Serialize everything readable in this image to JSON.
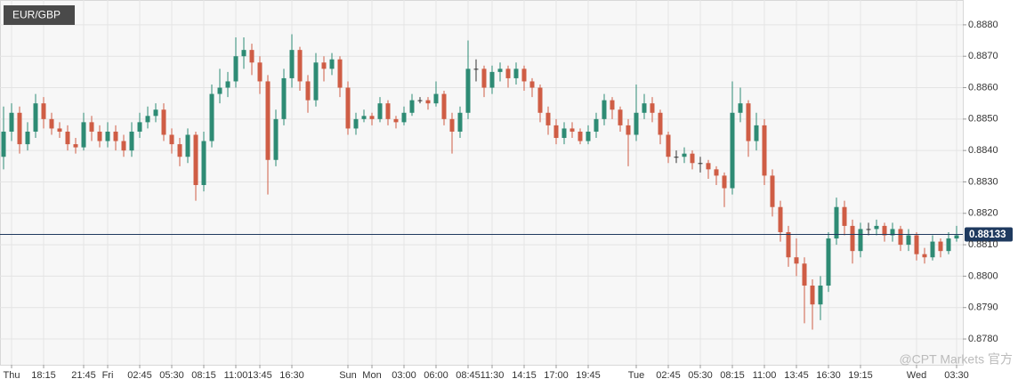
{
  "chart_data": {
    "type": "candlestick",
    "title": "EUR/GBP",
    "categories": [
      null,
      "Thu",
      null,
      null,
      null,
      "18:15",
      null,
      null,
      null,
      null,
      "21:45",
      null,
      null,
      "Fri",
      null,
      null,
      null,
      "02:45",
      null,
      null,
      null,
      "05:30",
      null,
      null,
      null,
      "08:15",
      null,
      null,
      null,
      "11:00",
      null,
      null,
      "13:45",
      null,
      null,
      null,
      "16:30",
      null,
      null,
      null,
      null,
      null,
      null,
      "Sun",
      null,
      null,
      "Mon",
      null,
      null,
      null,
      "03:00",
      null,
      null,
      null,
      "06:00",
      null,
      null,
      null,
      "08:45",
      null,
      null,
      "11:30",
      null,
      null,
      null,
      "14:15",
      null,
      null,
      null,
      "17:00",
      null,
      null,
      null,
      "19:45",
      null,
      null,
      null,
      null,
      null,
      "Tue",
      null,
      null,
      null,
      "02:45",
      null,
      null,
      null,
      "05:30",
      null,
      null,
      null,
      "08:15",
      null,
      null,
      null,
      "11:00",
      null,
      null,
      null,
      "13:45",
      null,
      null,
      null,
      "16:30",
      null,
      null,
      null,
      "19:15",
      null,
      null,
      null,
      null,
      null,
      null,
      "Wed",
      null,
      null,
      null,
      null,
      "03:30"
    ],
    "open": [
      0.8838,
      0.8846,
      0.8852,
      0.8842,
      0.8846,
      0.8855,
      0.885,
      0.8847,
      0.8846,
      0.8842,
      0.8841,
      0.8849,
      0.8846,
      0.8843,
      0.8846,
      0.8843,
      0.884,
      0.8846,
      0.8849,
      0.8851,
      0.8853,
      0.8845,
      0.8842,
      0.8838,
      0.8845,
      0.8829,
      0.8843,
      0.8858,
      0.886,
      0.8862,
      0.887,
      0.8872,
      0.8868,
      0.8862,
      0.8837,
      0.885,
      0.8863,
      0.8872,
      0.8862,
      0.8856,
      0.8868,
      0.8866,
      0.8869,
      0.886,
      0.8847,
      0.885,
      0.8851,
      0.885,
      0.8855,
      0.885,
      0.8849,
      0.8852,
      0.8856,
      0.8856,
      0.8855,
      0.8858,
      0.885,
      0.8846,
      0.8852,
      0.8866,
      0.8866,
      0.886,
      0.8865,
      0.8866,
      0.8863,
      0.8866,
      0.8862,
      0.886,
      0.8852,
      0.8848,
      0.8844,
      0.8847,
      0.8846,
      0.8843,
      0.8846,
      0.885,
      0.8856,
      0.8853,
      0.8848,
      0.8845,
      0.8852,
      0.8855,
      0.8852,
      0.8845,
      0.8838,
      0.8838,
      0.8839,
      0.8836,
      0.8836,
      0.8834,
      0.8832,
      0.8828,
      0.8852,
      0.8855,
      0.8843,
      0.8848,
      0.8832,
      0.8822,
      0.8814,
      0.8806,
      0.8804,
      0.8797,
      0.8791,
      0.8797,
      0.8812,
      0.8822,
      0.8816,
      0.8808,
      0.8815,
      0.8815,
      0.8816,
      0.8813,
      0.8815,
      0.881,
      0.8813,
      0.8807,
      0.8806,
      0.8811,
      0.8808,
      0.8812
    ],
    "high": [
      0.8854,
      0.8855,
      0.8854,
      0.8849,
      0.8858,
      0.8857,
      0.8852,
      0.8849,
      0.8848,
      0.8844,
      0.8852,
      0.8851,
      0.8848,
      0.8849,
      0.8848,
      0.8845,
      0.8849,
      0.8852,
      0.8854,
      0.8855,
      0.8855,
      0.8847,
      0.8844,
      0.8847,
      0.8846,
      0.8846,
      0.8861,
      0.8866,
      0.8865,
      0.8876,
      0.8876,
      0.8874,
      0.887,
      0.8864,
      0.8853,
      0.8866,
      0.8877,
      0.8873,
      0.8864,
      0.8871,
      0.887,
      0.8871,
      0.887,
      0.8862,
      0.8852,
      0.8853,
      0.8852,
      0.8857,
      0.8856,
      0.8851,
      0.8854,
      0.8858,
      0.8857,
      0.8857,
      0.8862,
      0.8859,
      0.8852,
      0.8854,
      0.8875,
      0.8869,
      0.8867,
      0.8867,
      0.8868,
      0.8867,
      0.8868,
      0.8867,
      0.8863,
      0.8861,
      0.8854,
      0.885,
      0.8849,
      0.8849,
      0.8847,
      0.8848,
      0.8852,
      0.8858,
      0.8857,
      0.8854,
      0.885,
      0.8861,
      0.8858,
      0.8857,
      0.8853,
      0.8846,
      0.884,
      0.8841,
      0.884,
      0.8838,
      0.8837,
      0.8835,
      0.8833,
      0.8862,
      0.886,
      0.8856,
      0.8852,
      0.885,
      0.8834,
      0.8824,
      0.8816,
      0.8812,
      0.8806,
      0.8799,
      0.88,
      0.8814,
      0.8825,
      0.8824,
      0.8818,
      0.8817,
      0.8817,
      0.8818,
      0.8817,
      0.8817,
      0.8816,
      0.8815,
      0.8814,
      0.8809,
      0.8813,
      0.8812,
      0.8814,
      0.8816
    ],
    "low": [
      0.8834,
      0.8843,
      0.8839,
      0.884,
      0.8844,
      0.8847,
      0.8845,
      0.8844,
      0.884,
      0.8839,
      0.884,
      0.8843,
      0.8841,
      0.8841,
      0.884,
      0.8838,
      0.8838,
      0.8844,
      0.8847,
      0.8849,
      0.8843,
      0.8839,
      0.8835,
      0.8836,
      0.8824,
      0.8827,
      0.8841,
      0.8855,
      0.8857,
      0.886,
      0.8866,
      0.8864,
      0.8858,
      0.8826,
      0.8835,
      0.8848,
      0.886,
      0.8859,
      0.8852,
      0.8854,
      0.8862,
      0.8864,
      0.8857,
      0.8845,
      0.8845,
      0.8849,
      0.8848,
      0.8849,
      0.8848,
      0.8847,
      0.8848,
      0.8851,
      0.8855,
      0.8853,
      0.8854,
      0.8848,
      0.8839,
      0.8844,
      0.885,
      0.8862,
      0.8857,
      0.8858,
      0.8862,
      0.886,
      0.8861,
      0.8859,
      0.8857,
      0.8849,
      0.8845,
      0.8842,
      0.8842,
      0.8844,
      0.8842,
      0.8842,
      0.8844,
      0.8848,
      0.885,
      0.8846,
      0.8835,
      0.8843,
      0.885,
      0.8849,
      0.8842,
      0.8836,
      0.8836,
      0.8836,
      0.8834,
      0.8833,
      0.8831,
      0.8829,
      0.8822,
      0.8826,
      0.8849,
      0.8838,
      0.884,
      0.8829,
      0.8819,
      0.8811,
      0.8803,
      0.88,
      0.8785,
      0.8783,
      0.8786,
      0.8795,
      0.881,
      0.8813,
      0.8804,
      0.8806,
      0.8813,
      0.8813,
      0.8811,
      0.8811,
      0.8808,
      0.8808,
      0.8805,
      0.8804,
      0.8805,
      0.8806,
      0.8807,
      0.8811
    ],
    "close": [
      0.8846,
      0.8852,
      0.8842,
      0.8846,
      0.8855,
      0.885,
      0.8847,
      0.8846,
      0.8842,
      0.8841,
      0.8849,
      0.8846,
      0.8843,
      0.8846,
      0.8843,
      0.884,
      0.8846,
      0.8849,
      0.8851,
      0.8853,
      0.8845,
      0.8842,
      0.8838,
      0.8845,
      0.8829,
      0.8843,
      0.8858,
      0.886,
      0.8862,
      0.887,
      0.8872,
      0.8868,
      0.8862,
      0.8837,
      0.885,
      0.8863,
      0.8872,
      0.8862,
      0.8856,
      0.8868,
      0.8866,
      0.8869,
      0.886,
      0.8847,
      0.885,
      0.8851,
      0.885,
      0.8855,
      0.885,
      0.8849,
      0.8852,
      0.8856,
      0.8856,
      0.8855,
      0.8858,
      0.885,
      0.8846,
      0.8852,
      0.8866,
      0.8866,
      0.886,
      0.8865,
      0.8866,
      0.8863,
      0.8866,
      0.8862,
      0.886,
      0.8852,
      0.8848,
      0.8844,
      0.8847,
      0.8846,
      0.8843,
      0.8846,
      0.885,
      0.8856,
      0.8853,
      0.8848,
      0.8845,
      0.8852,
      0.8855,
      0.8852,
      0.8845,
      0.8838,
      0.8838,
      0.8839,
      0.8836,
      0.8836,
      0.8834,
      0.8832,
      0.8828,
      0.8852,
      0.8855,
      0.8843,
      0.8848,
      0.8832,
      0.8822,
      0.8814,
      0.8806,
      0.8804,
      0.8797,
      0.8791,
      0.8797,
      0.8812,
      0.8822,
      0.8816,
      0.8808,
      0.8815,
      0.8815,
      0.8816,
      0.8813,
      0.8815,
      0.881,
      0.8813,
      0.8807,
      0.8806,
      0.8811,
      0.8808,
      0.8812,
      0.8813
    ],
    "up_color": "#2e8b74",
    "down_color": "#cf5d45",
    "flat_color": "#333333",
    "last_price": 0.88133,
    "last_price_color": "#1f3a5f",
    "ylim": [
      0.87718,
      0.88879
    ],
    "yticks": [
      {
        "value": 0.878,
        "label": "0.8780"
      },
      {
        "value": 0.879,
        "label": "0.8790"
      },
      {
        "value": 0.88,
        "label": "0.8800"
      },
      {
        "value": 0.881,
        "label": "0.8810"
      },
      {
        "value": 0.882,
        "label": "0.8820"
      },
      {
        "value": 0.883,
        "label": "0.8830"
      },
      {
        "value": 0.884,
        "label": "0.8840"
      },
      {
        "value": 0.885,
        "label": "0.8850"
      },
      {
        "value": 0.886,
        "label": "0.8860"
      },
      {
        "value": 0.887,
        "label": "0.8870"
      },
      {
        "value": 0.888,
        "label": "0.8880"
      }
    ],
    "grid": true,
    "watermark": "@CPT Markets 官方"
  }
}
